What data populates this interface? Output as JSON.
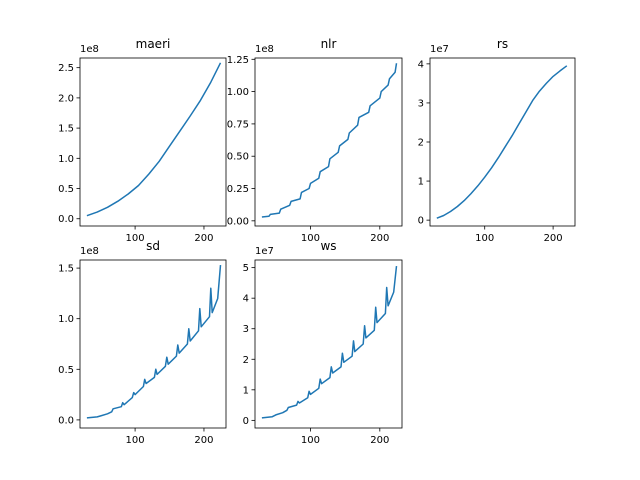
{
  "figure": {
    "background": "#ffffff",
    "line_color": "#1f77b4"
  },
  "chart_data": [
    {
      "type": "line",
      "title": "maeri",
      "xlim": [
        20,
        232
      ],
      "ylim": [
        -12000000.0,
        266000000.0
      ],
      "xticks": [
        100,
        200
      ],
      "xtick_labels": [
        "100",
        "200"
      ],
      "yticks": [
        0,
        50000000.0,
        100000000.0,
        150000000.0,
        200000000.0,
        250000000.0
      ],
      "ytick_labels": [
        "0.0",
        "0.5",
        "1.0",
        "1.5",
        "2.0",
        "2.5"
      ],
      "offset_text": "1e8",
      "series": [
        {
          "x": [
            30,
            45,
            60,
            75,
            90,
            105,
            120,
            135,
            150,
            165,
            180,
            195,
            210,
            224
          ],
          "y": [
            5000000.0,
            11000000.0,
            19000000.0,
            29000000.0,
            41000000.0,
            55000000.0,
            74000000.0,
            95000000.0,
            120000000.0,
            145000000.0,
            170000000.0,
            196000000.0,
            226000000.0,
            258000000.0
          ]
        }
      ]
    },
    {
      "type": "line",
      "title": "nlr",
      "xlim": [
        20,
        232
      ],
      "ylim": [
        -4000000.0,
        126000000.0
      ],
      "xticks": [
        100,
        200
      ],
      "xtick_labels": [
        "100",
        "200"
      ],
      "yticks": [
        0,
        25000000.0,
        50000000.0,
        75000000.0,
        100000000.0,
        125000000.0
      ],
      "ytick_labels": [
        "0.00",
        "0.25",
        "0.50",
        "0.75",
        "1.00",
        "1.25"
      ],
      "offset_text": "1e8",
      "series": [
        {
          "x": [
            30,
            40,
            42,
            55,
            57,
            70,
            72,
            85,
            87,
            98,
            100,
            112,
            114,
            126,
            128,
            140,
            142,
            154,
            156,
            168,
            170,
            184,
            186,
            200,
            202,
            212,
            214,
            222,
            224
          ],
          "y": [
            3000000.0,
            3500000.0,
            5000000.0,
            6000000.0,
            9000000.0,
            12000000.0,
            15000000.0,
            17000000.0,
            22000000.0,
            25000000.0,
            29000000.0,
            33000000.0,
            38000000.0,
            42000000.0,
            48000000.0,
            53000000.0,
            58000000.0,
            63000000.0,
            68000000.0,
            74000000.0,
            80000000.0,
            84000000.0,
            89000000.0,
            95000000.0,
            100000000.0,
            105000000.0,
            110000000.0,
            115000000.0,
            122000000.0
          ]
        }
      ]
    },
    {
      "type": "line",
      "title": "rs",
      "xlim": [
        20,
        232
      ],
      "ylim": [
        -1500000.0,
        41500000.0
      ],
      "xticks": [
        100,
        200
      ],
      "xtick_labels": [
        "100",
        "200"
      ],
      "yticks": [
        0,
        10000000.0,
        20000000.0,
        30000000.0,
        40000000.0
      ],
      "ytick_labels": [
        "0",
        "1",
        "2",
        "3",
        "4"
      ],
      "offset_text": "1e7",
      "series": [
        {
          "x": [
            30,
            40,
            50,
            60,
            70,
            80,
            90,
            100,
            110,
            120,
            130,
            140,
            150,
            160,
            170,
            180,
            190,
            200,
            210,
            220
          ],
          "y": [
            500000.0,
            1200000.0,
            2200000.0,
            3500000.0,
            5000000.0,
            6800000.0,
            8800000.0,
            11000000.0,
            13400000.0,
            16000000.0,
            18800000.0,
            21600000.0,
            24600000.0,
            27600000.0,
            30600000.0,
            33000000.0,
            35000000.0,
            36800000.0,
            38200000.0,
            39500000.0
          ]
        }
      ]
    },
    {
      "type": "line",
      "title": "sd",
      "xlim": [
        20,
        232
      ],
      "ylim": [
        -8000000.0,
        158000000.0
      ],
      "xticks": [
        100,
        200
      ],
      "xtick_labels": [
        "100",
        "200"
      ],
      "yticks": [
        0,
        50000000.0,
        100000000.0,
        150000000.0
      ],
      "ytick_labels": [
        "0.0",
        "0.5",
        "1.0",
        "1.5"
      ],
      "offset_text": "1e8",
      "series": [
        {
          "x": [
            30,
            45,
            50,
            60,
            66,
            68,
            80,
            82,
            84,
            96,
            98,
            100,
            112,
            114,
            116,
            128,
            130,
            132,
            144,
            146,
            148,
            160,
            162,
            164,
            176,
            178,
            180,
            192,
            194,
            196,
            208,
            210,
            212,
            220,
            224
          ],
          "y": [
            2000000.0,
            3000000.0,
            4000000.0,
            6000000.0,
            8000000.0,
            11000000.0,
            13000000.0,
            17000000.0,
            15000000.0,
            22000000.0,
            27000000.0,
            25000000.0,
            33000000.0,
            40000000.0,
            36000000.0,
            42000000.0,
            50000000.0,
            45000000.0,
            53000000.0,
            62000000.0,
            55000000.0,
            63000000.0,
            74000000.0,
            66000000.0,
            75000000.0,
            90000000.0,
            78000000.0,
            88000000.0,
            110000000.0,
            92000000.0,
            102000000.0,
            130000000.0,
            106000000.0,
            120000000.0,
            153000000.0
          ]
        }
      ]
    },
    {
      "type": "line",
      "title": "ws",
      "xlim": [
        20,
        232
      ],
      "ylim": [
        -2500000.0,
        52500000.0
      ],
      "xticks": [
        100,
        200
      ],
      "xtick_labels": [
        "100",
        "200"
      ],
      "yticks": [
        0,
        10000000.0,
        20000000.0,
        30000000.0,
        40000000.0,
        50000000.0
      ],
      "ytick_labels": [
        "0",
        "1",
        "2",
        "3",
        "4",
        "5"
      ],
      "offset_text": "1e7",
      "series": [
        {
          "x": [
            30,
            45,
            50,
            60,
            66,
            68,
            80,
            82,
            84,
            96,
            98,
            100,
            112,
            114,
            116,
            128,
            130,
            132,
            144,
            146,
            148,
            160,
            162,
            164,
            176,
            178,
            180,
            192,
            194,
            196,
            208,
            210,
            212,
            220,
            224
          ],
          "y": [
            800000.0,
            1200000.0,
            1800000.0,
            2500000.0,
            3300000.0,
            4200000.0,
            5000000.0,
            6200000.0,
            5700000.0,
            7400000.0,
            9500000.0,
            8500000.0,
            10500000.0,
            13500000.0,
            12000000.0,
            14000000.0,
            17500000.0,
            15500000.0,
            17500000.0,
            22000000.0,
            19000000.0,
            21000000.0,
            26000000.0,
            22500000.0,
            25000000.0,
            31000000.0,
            27000000.0,
            29500000.0,
            37000000.0,
            32000000.0,
            35000000.0,
            43500000.0,
            37500000.0,
            42000000.0,
            50500000.0
          ]
        }
      ]
    }
  ]
}
